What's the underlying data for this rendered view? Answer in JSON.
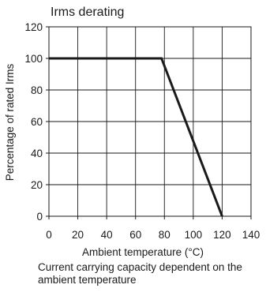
{
  "chart_data": {
    "type": "line",
    "title": "Irms derating",
    "xlabel": "Ambient temperature (°C)",
    "ylabel": "Percentage of rated Irms",
    "xlim": [
      0,
      140
    ],
    "ylim": [
      0,
      120
    ],
    "x_ticks": [
      0,
      20,
      40,
      60,
      80,
      100,
      120,
      140
    ],
    "y_ticks": [
      0,
      20,
      40,
      60,
      80,
      100,
      120
    ],
    "grid": true,
    "series": [
      {
        "x": [
          0,
          78,
          120
        ],
        "y": [
          100,
          100,
          0
        ],
        "color": "#1a1a1a"
      }
    ]
  },
  "caption": "Current carrying capacity dependent on the ambient temperature"
}
